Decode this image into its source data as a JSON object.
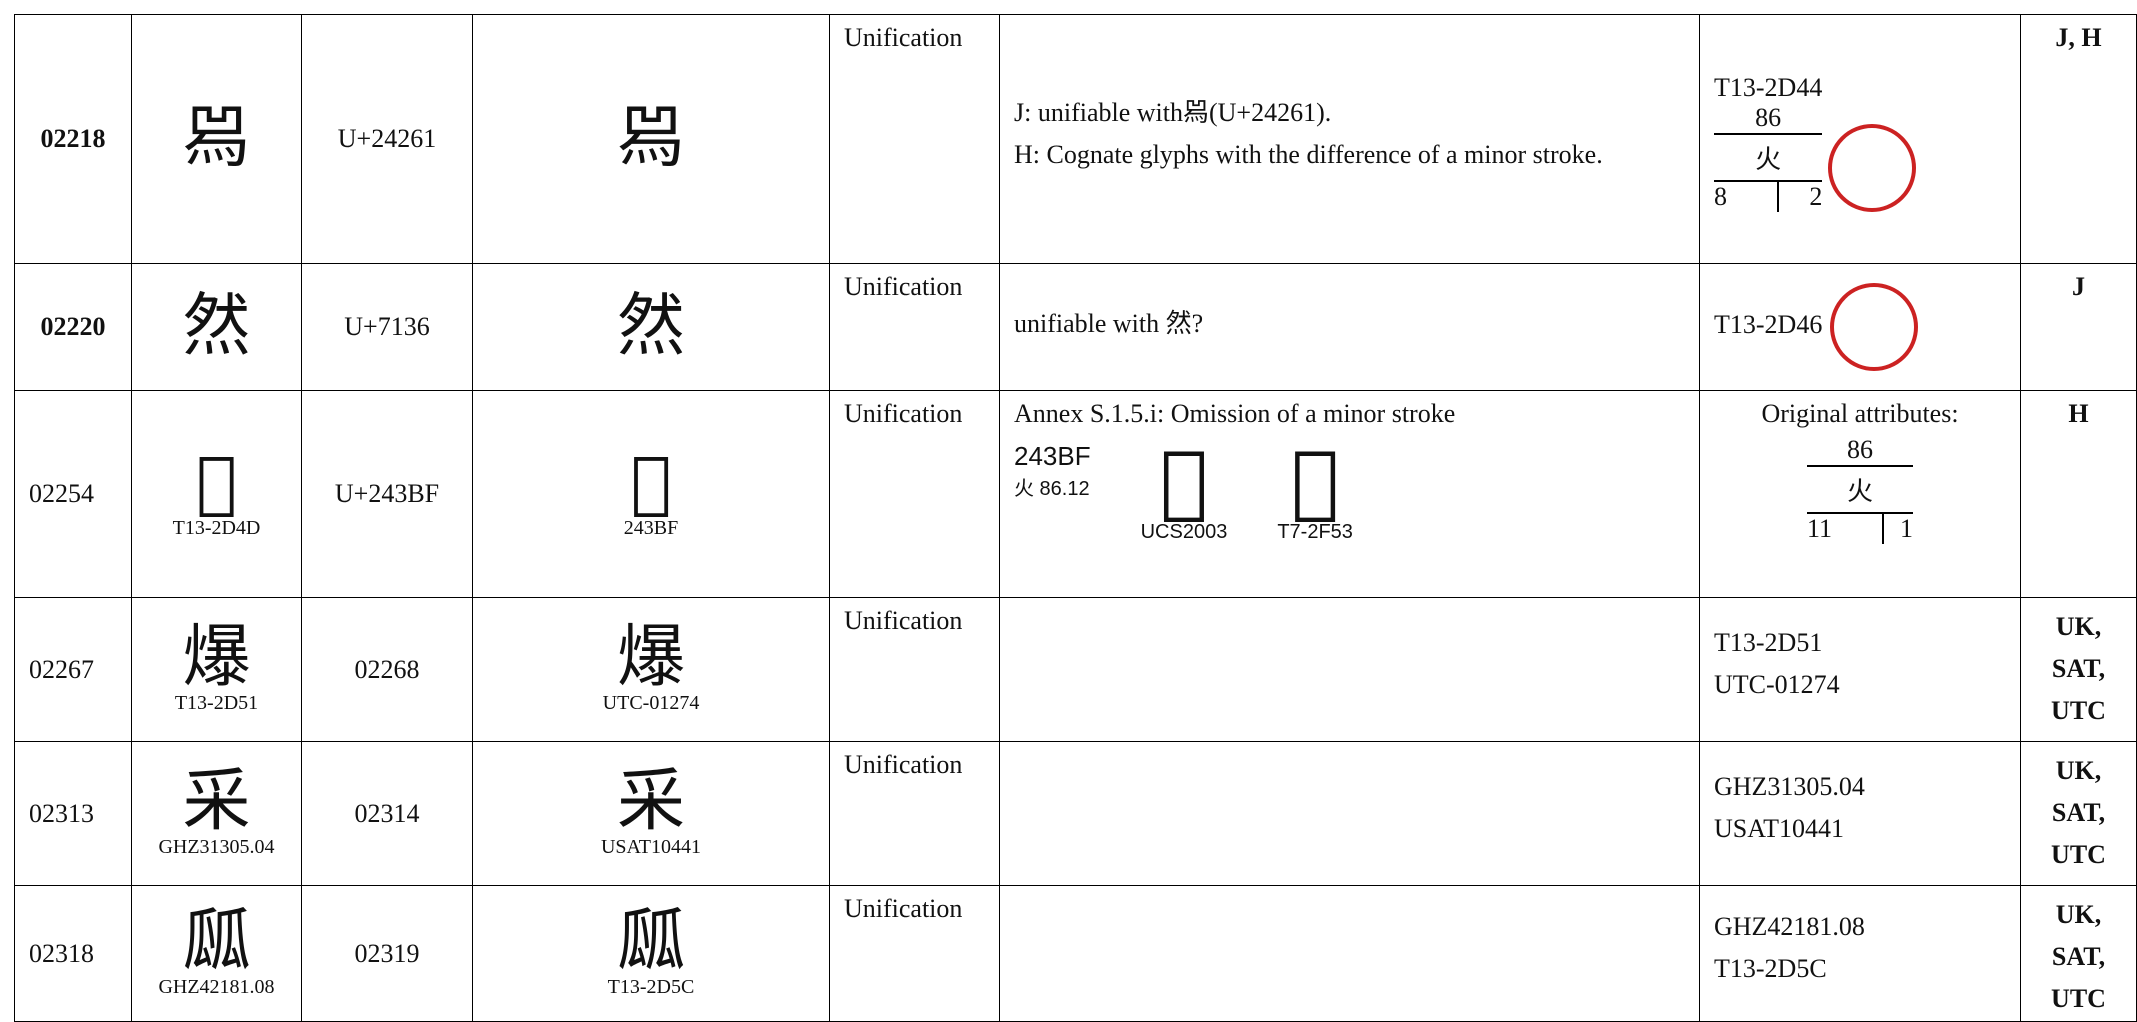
{
  "table": {
    "rows": [
      {
        "seq": "02218",
        "glyph": "𤉡",
        "code": "U+24261",
        "glyph2": "𤉡",
        "type": "Unification",
        "desc": [
          "J: unifiable with𤉡(U+24261).",
          "H: Cognate glyphs with the difference of a minor stroke."
        ],
        "evidence": {
          "source": "T13-2D44",
          "radical_no": "86",
          "radical": "火",
          "strokes": "8",
          "first": "2"
        },
        "submitter": "J, H"
      },
      {
        "seq": "02220",
        "glyph": "然",
        "code": "U+7136",
        "glyph2": "然",
        "type": "Unification",
        "desc": [
          "unifiable with  然?"
        ],
        "evidence": {
          "source": "T13-2D46"
        },
        "submitter": "J"
      },
      {
        "seq": "02254",
        "glyph": "𤎿",
        "glyph_label": "T13-2D4D",
        "code": "U+243BF",
        "glyph2": "𤎿",
        "glyph2_label": "243BF",
        "type": "Unification",
        "desc": [
          "Annex S.1.5.i: Omission of a minor stroke"
        ],
        "desc_image": {
          "code": "243BF",
          "radical": "火 86.12",
          "glyph_a": "𤎿",
          "label_a": "UCS2003",
          "glyph_b": "𤎿",
          "label_b": "T7-2F53"
        },
        "evidence": {
          "heading": "Original attributes:",
          "radical_no": "86",
          "radical": "火",
          "strokes": "11",
          "first": "1"
        },
        "submitter": "H"
      },
      {
        "seq": "02267",
        "glyph": "爆",
        "glyph_label": "T13-2D51",
        "code": "02268",
        "glyph2": "爆",
        "glyph2_label": "UTC-01274",
        "type": "Unification",
        "evidence": {
          "lines": [
            "T13-2D51",
            "UTC-01274"
          ]
        },
        "submitter": [
          "UK,",
          "SAT,",
          "UTC"
        ]
      },
      {
        "seq": "02313",
        "glyph": "采",
        "glyph_label": "GHZ31305.04",
        "code": "02314",
        "glyph2": "采",
        "glyph2_label": "USAT10441",
        "type": "Unification",
        "evidence": {
          "lines": [
            "GHZ31305.04",
            "USAT10441"
          ]
        },
        "submitter": [
          "UK,",
          "SAT,",
          "UTC"
        ]
      },
      {
        "seq": "02318",
        "glyph": "㼌",
        "glyph_label": "GHZ42181.08",
        "code": "02319",
        "glyph2": "㼌",
        "glyph2_label": "T13-2D5C",
        "type": "Unification",
        "evidence": {
          "lines": [
            "GHZ42181.08",
            "T13-2D5C"
          ]
        },
        "submitter": [
          "UK,",
          "SAT,",
          "UTC"
        ]
      }
    ]
  }
}
